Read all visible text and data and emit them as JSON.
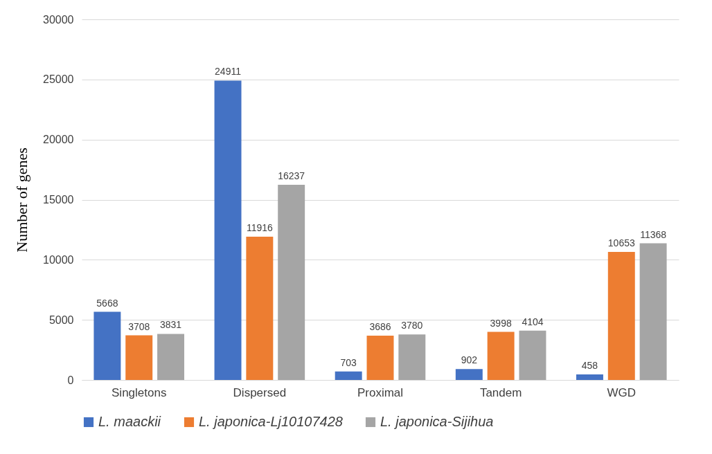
{
  "chart_data": {
    "type": "bar",
    "ylabel": "Number of genes",
    "categories": [
      "Singletons",
      "Dispersed",
      "Proximal",
      "Tandem",
      "WGD"
    ],
    "series": [
      {
        "name": "L. maackii",
        "color": "#4472c4",
        "values": [
          5668,
          24911,
          703,
          902,
          458
        ]
      },
      {
        "name": "L. japonica-Lj10107428",
        "color": "#ed7d31",
        "values": [
          3708,
          11916,
          3686,
          3998,
          10653
        ]
      },
      {
        "name": "L. japonica-Sijihua",
        "color": "#a5a5a5",
        "values": [
          3831,
          16237,
          3780,
          4104,
          11368
        ]
      }
    ],
    "ylim": [
      0,
      30000
    ],
    "yticks": [
      0,
      5000,
      10000,
      15000,
      20000,
      25000,
      30000
    ],
    "grid": "y",
    "legend": "bottom",
    "data_labels": true
  }
}
